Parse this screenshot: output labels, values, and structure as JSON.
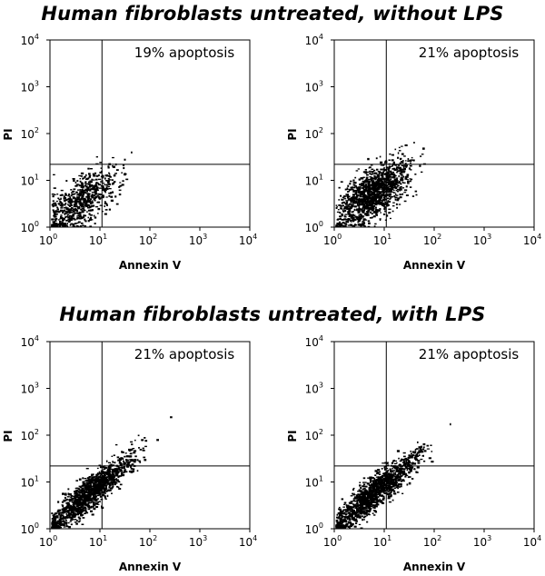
{
  "titles": {
    "top": "Human fibroblasts untreated, without LPS",
    "bottom": "Human fibroblasts untreated, with LPS"
  },
  "colors": {
    "points": "#000000",
    "axes": "#000000",
    "background": "#ffffff"
  },
  "chart_data": [
    {
      "type": "scatter",
      "row_title": "Human fibroblasts untreated, without LPS",
      "xlabel": "Annexin V",
      "ylabel": "PI",
      "x_scale": "log",
      "y_scale": "log",
      "xlim": [
        1,
        10000
      ],
      "ylim": [
        1,
        10000
      ],
      "x_ticks": [
        1,
        10,
        100,
        1000,
        10000
      ],
      "y_ticks": [
        1,
        10,
        100,
        1000,
        10000
      ],
      "tick_labels": [
        "10^0",
        "10^1",
        "10^2",
        "10^3",
        "10^4"
      ],
      "quadrant_gate": {
        "x": 11,
        "y": 22
      },
      "annotation": "19% apoptosis",
      "population": {
        "center_x": 4.0,
        "center_y": 3.6,
        "spread": "moderate",
        "sparse": true
      },
      "grid": false
    },
    {
      "type": "scatter",
      "row_title": "Human fibroblasts untreated, without LPS",
      "xlabel": "Annexin V",
      "ylabel": "PI",
      "x_scale": "log",
      "y_scale": "log",
      "xlim": [
        1,
        10000
      ],
      "ylim": [
        1,
        10000
      ],
      "x_ticks": [
        1,
        10,
        100,
        1000,
        10000
      ],
      "y_ticks": [
        1,
        10,
        100,
        1000,
        10000
      ],
      "tick_labels": [
        "10^0",
        "10^1",
        "10^2",
        "10^3",
        "10^4"
      ],
      "quadrant_gate": {
        "x": 11,
        "y": 22
      },
      "annotation": "21% apoptosis",
      "population": {
        "center_x": 5.5,
        "center_y": 5.0,
        "spread": "wide",
        "sparse": false
      },
      "grid": false
    },
    {
      "type": "scatter",
      "row_title": "Human fibroblasts untreated, with LPS",
      "xlabel": "Annexin V",
      "ylabel": "PI",
      "x_scale": "log",
      "y_scale": "log",
      "xlim": [
        1,
        10000
      ],
      "ylim": [
        1,
        10000
      ],
      "x_ticks": [
        1,
        10,
        100,
        1000,
        10000
      ],
      "y_ticks": [
        1,
        10,
        100,
        1000,
        10000
      ],
      "tick_labels": [
        "10^0",
        "10^1",
        "10^2",
        "10^3",
        "10^4"
      ],
      "quadrant_gate": {
        "x": 11,
        "y": 22
      },
      "annotation": "21% apoptosis",
      "population": {
        "center_x": 6.0,
        "center_y": 6.0,
        "spread": "diagonal",
        "sparse": false
      },
      "grid": false
    },
    {
      "type": "scatter",
      "row_title": "Human fibroblasts untreated, with LPS",
      "xlabel": "Annexin V",
      "ylabel": "PI",
      "x_scale": "log",
      "y_scale": "log",
      "xlim": [
        1,
        10000
      ],
      "ylim": [
        1,
        10000
      ],
      "x_ticks": [
        1,
        10,
        100,
        1000,
        10000
      ],
      "y_ticks": [
        1,
        10,
        100,
        1000,
        10000
      ],
      "tick_labels": [
        "10^0",
        "10^1",
        "10^2",
        "10^3",
        "10^4"
      ],
      "quadrant_gate": {
        "x": 11,
        "y": 22
      },
      "annotation": "21% apoptosis",
      "population": {
        "center_x": 6.0,
        "center_y": 6.0,
        "spread": "diagonal",
        "sparse": false
      },
      "grid": false
    }
  ]
}
